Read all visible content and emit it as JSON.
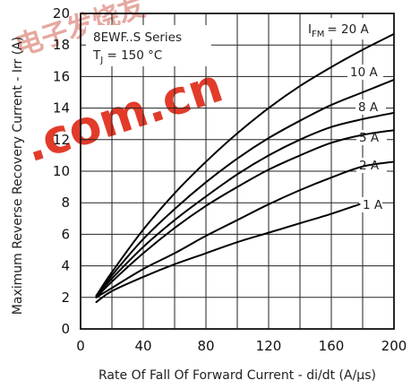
{
  "chart_data": {
    "type": "line",
    "xlabel": "Rate Of Fall Of Forward Current - di/dt (A/µs)",
    "ylabel": "Maximum Reverse Recovery Current - Irr (A)",
    "xlim": [
      0,
      200
    ],
    "ylim": [
      0,
      20
    ],
    "x_ticks": [
      0,
      40,
      80,
      120,
      160,
      200
    ],
    "y_ticks": [
      0,
      2,
      4,
      6,
      8,
      10,
      12,
      14,
      16,
      18,
      20
    ],
    "x_tick_labels": [
      "0",
      "40",
      "80",
      "120",
      "160",
      "200"
    ],
    "y_tick_labels": [
      "0",
      "2",
      "4",
      "6",
      "8",
      "10",
      "12",
      "14",
      "16",
      "18",
      "20"
    ],
    "grid": true,
    "annotations": {
      "series_name": "8EWF..S Series",
      "condition_prefix": "T",
      "condition_subscript": "J",
      "condition_value": " = 150 °C",
      "ifm_prefix": "I",
      "ifm_subscript": "FM"
    },
    "series": [
      {
        "name": "= 20 A",
        "x": [
          10,
          20,
          40,
          60,
          80,
          100,
          120,
          140,
          160,
          180,
          200
        ],
        "y": [
          2.1,
          3.6,
          6.3,
          8.6,
          10.6,
          12.4,
          14.0,
          15.4,
          16.6,
          17.7,
          18.7
        ]
      },
      {
        "name": "10 A",
        "x": [
          10,
          20,
          40,
          60,
          80,
          100,
          120,
          140,
          160,
          180,
          200
        ],
        "y": [
          2.1,
          3.4,
          5.7,
          7.6,
          9.3,
          10.8,
          12.1,
          13.2,
          14.2,
          15.0,
          15.8
        ]
      },
      {
        "name": "8 A",
        "x": [
          10,
          20,
          40,
          60,
          80,
          100,
          120,
          140,
          160,
          180,
          200
        ],
        "y": [
          2.1,
          3.2,
          5.2,
          6.9,
          8.4,
          9.8,
          11.0,
          12.0,
          12.8,
          13.3,
          13.7
        ]
      },
      {
        "name": "5 A",
        "x": [
          10,
          20,
          40,
          60,
          80,
          100,
          120,
          140,
          160,
          180,
          200
        ],
        "y": [
          2.0,
          3.0,
          4.8,
          6.4,
          7.8,
          9.0,
          10.1,
          11.0,
          11.8,
          12.3,
          12.6
        ]
      },
      {
        "name": "2 A",
        "x": [
          10,
          20,
          40,
          60,
          80,
          100,
          120,
          140,
          160,
          180,
          200
        ],
        "y": [
          2.0,
          2.6,
          3.8,
          4.8,
          5.9,
          6.9,
          7.9,
          8.8,
          9.6,
          10.3,
          10.6
        ]
      },
      {
        "name": "1 A",
        "x": [
          10,
          20,
          40,
          60,
          80,
          100,
          120,
          140,
          160,
          178,
          183,
          200
        ],
        "y": [
          1.7,
          2.4,
          3.3,
          4.1,
          4.8,
          5.5,
          6.1,
          6.7,
          7.3,
          7.9,
          null,
          8.4
        ]
      }
    ]
  },
  "watermark": {
    "line1": "电子发烧友",
    "line2": ".com.cn"
  }
}
